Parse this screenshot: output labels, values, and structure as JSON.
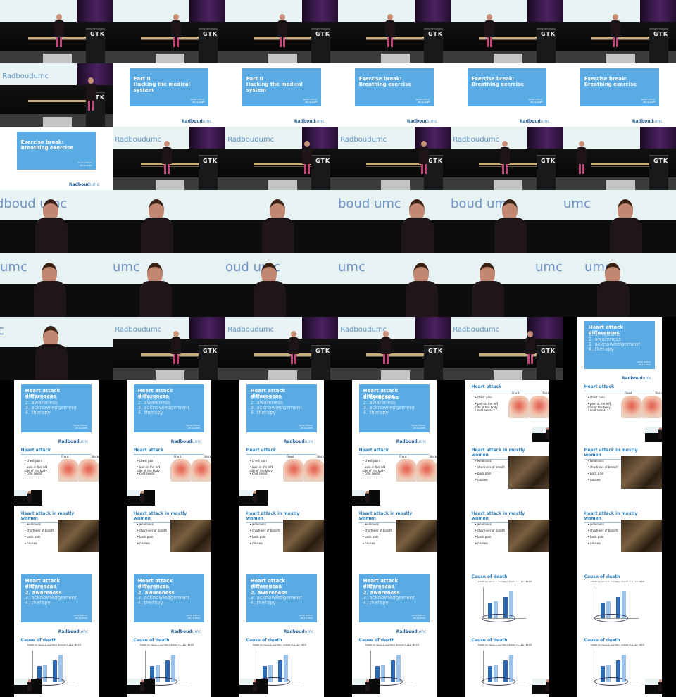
{
  "slides": {
    "part2": [
      "Part II",
      "Hacking the medical system"
    ],
    "exercise": [
      "Exercise break:",
      "Breathing exercise"
    ],
    "presenter": [
      "Sarah Hüfner",
      "08-12-2018"
    ],
    "logo": [
      "Radboud",
      "umc"
    ]
  },
  "stage_logo": "Radboudumc",
  "podium_logo": "GTK",
  "heart_list": {
    "title": "Heart attack differences",
    "items": [
      "1. symptoms",
      "2. awareness",
      "3. acknowledgement",
      "4. therapy"
    ]
  },
  "heart_attack": {
    "title": "Heart attack",
    "bullets": [
      "chest pain",
      "pain in the left side of the body",
      "cold sweat"
    ],
    "labels": [
      "Front",
      "Back"
    ]
  },
  "women": {
    "title": "Heart attack in mostly women",
    "bullets": [
      "weakness",
      "shortness of breath",
      "back pain",
      "nausea"
    ]
  },
  "death": {
    "title": "Cause of death",
    "subtitle": "Death by cause in Germany (based on year: 2012)"
  },
  "close_words": [
    "Radboud umc",
    "oud umc",
    "dboud umc",
    "boud umc",
    "umc",
    "c"
  ]
}
